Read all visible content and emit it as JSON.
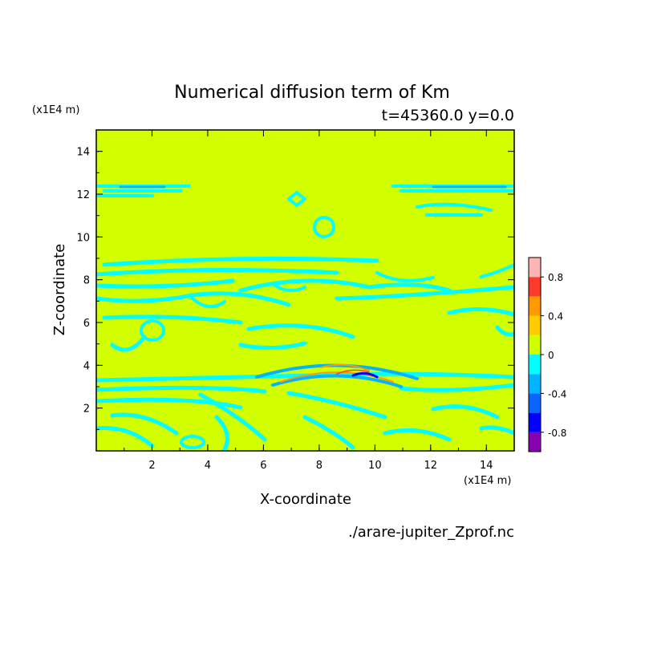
{
  "chart_data": {
    "type": "heatmap",
    "title": "Numerical diffusion term of Km",
    "subtitle": "t=45360.0 y=0.0",
    "xlabel": "X-coordinate",
    "ylabel": "Z-coordinate",
    "x_unit": "(x1E4 m)",
    "y_unit": "(x1E4 m)",
    "xlim": [
      0,
      15
    ],
    "ylim": [
      0,
      15
    ],
    "x_ticks": [
      "2",
      "4",
      "6",
      "8",
      "10",
      "12",
      "14"
    ],
    "y_ticks": [
      "2",
      "4",
      "6",
      "8",
      "10",
      "12",
      "14"
    ],
    "background_level": "0 to 0.2",
    "colorbar": {
      "levels": [
        -1.0,
        -0.8,
        -0.6,
        -0.4,
        -0.2,
        0,
        0.2,
        0.4,
        0.6,
        0.8,
        1.0
      ],
      "colors": [
        "#8a00b0",
        "#0000ff",
        "#0a64ff",
        "#00b4ff",
        "#00ffff",
        "#d2ff00",
        "#ffcc00",
        "#ff9900",
        "#ff3a2a",
        "#ffb4b4"
      ],
      "tick_labels": [
        "0.8",
        "0.4",
        "0",
        "-0.4",
        "-0.8"
      ]
    },
    "grid": false,
    "legend": "right"
  },
  "footer": {
    "filename": "./arare-jupiter_Zprof.nc"
  }
}
